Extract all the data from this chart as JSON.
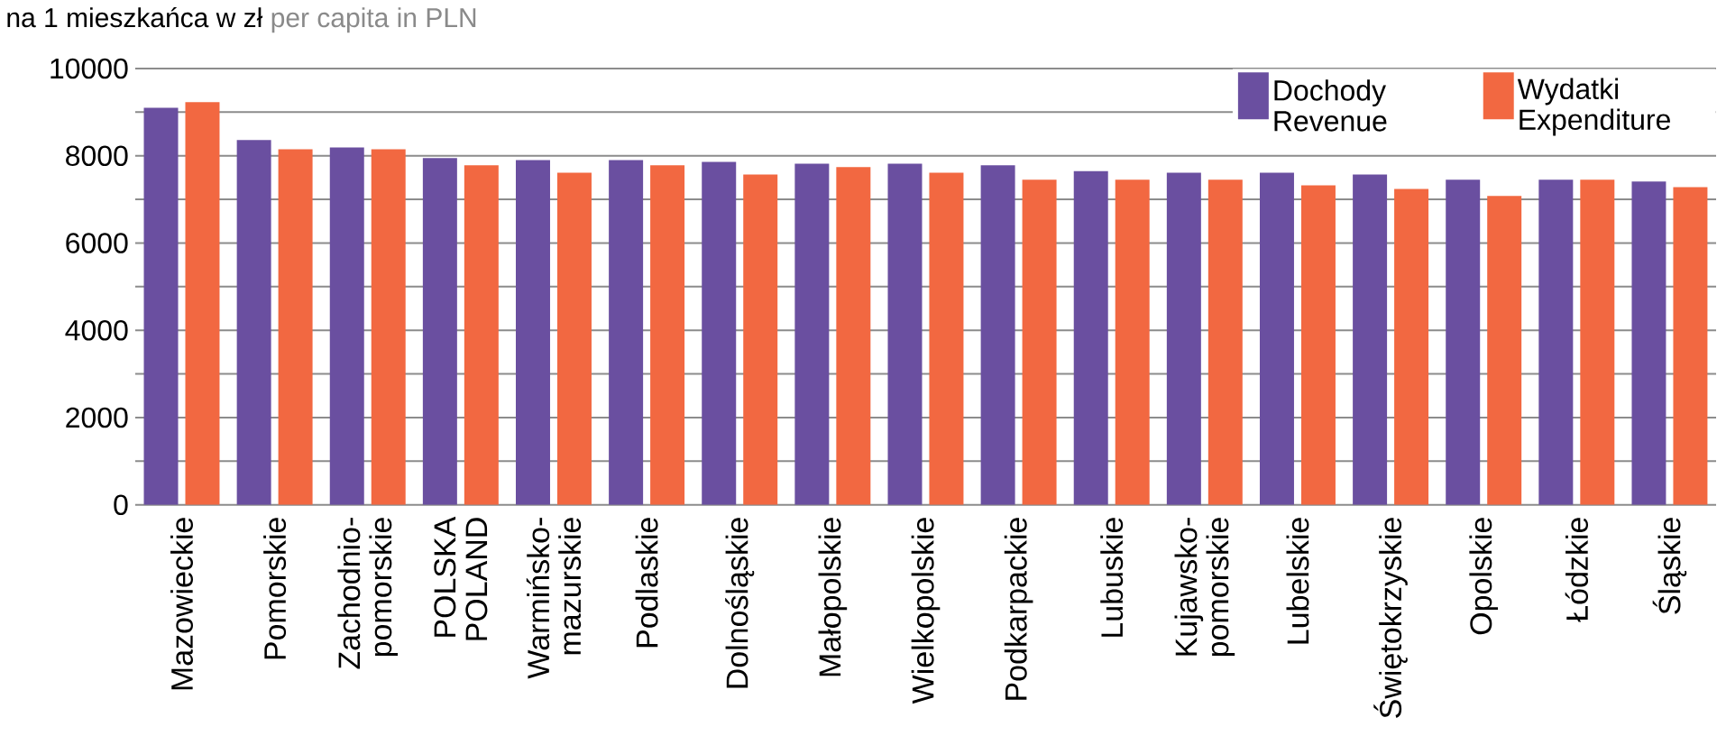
{
  "chart_data": {
    "type": "bar",
    "title": "na 1 mieszkańca w zł",
    "subtitle": "per capita in PLN",
    "categories": [
      "Mazowieckie",
      "Pomorskie",
      "Zachodnio-pomorskie",
      "POLSKA POLAND",
      "Warmińsko-mazurskie",
      "Podlaskie",
      "Dolnośląskie",
      "Małopolskie",
      "Wielkopolskie",
      "Podkarpackie",
      "Lubuskie",
      "Kujawsko-pomorskie",
      "Lubelskie",
      "Świętokrzyskie",
      "Opolskie",
      "Łódzkie",
      "Śląskie"
    ],
    "series": [
      {
        "name": "Dochody Revenue",
        "color": "#6a4fa0",
        "values": [
          9100,
          8360,
          8190,
          7950,
          7900,
          7900,
          7860,
          7820,
          7820,
          7780,
          7650,
          7610,
          7610,
          7570,
          7450,
          7450,
          7410
        ]
      },
      {
        "name": "Wydatki Expenditure",
        "color": "#f26841",
        "values": [
          9230,
          8150,
          8150,
          7780,
          7610,
          7780,
          7570,
          7740,
          7610,
          7450,
          7450,
          7450,
          7320,
          7240,
          7080,
          7450,
          7280
        ]
      }
    ],
    "ylim": [
      0,
      10000
    ],
    "yticks": [
      0,
      {
        "value": 1000,
        "label": null
      },
      2000,
      {
        "value": 3000,
        "label": null
      },
      4000,
      {
        "value": 5000,
        "label": null
      },
      6000,
      {
        "value": 7000,
        "label": null
      },
      8000,
      {
        "value": 9000,
        "label": null
      },
      10000
    ],
    "grid": "y",
    "legend": "top right"
  }
}
